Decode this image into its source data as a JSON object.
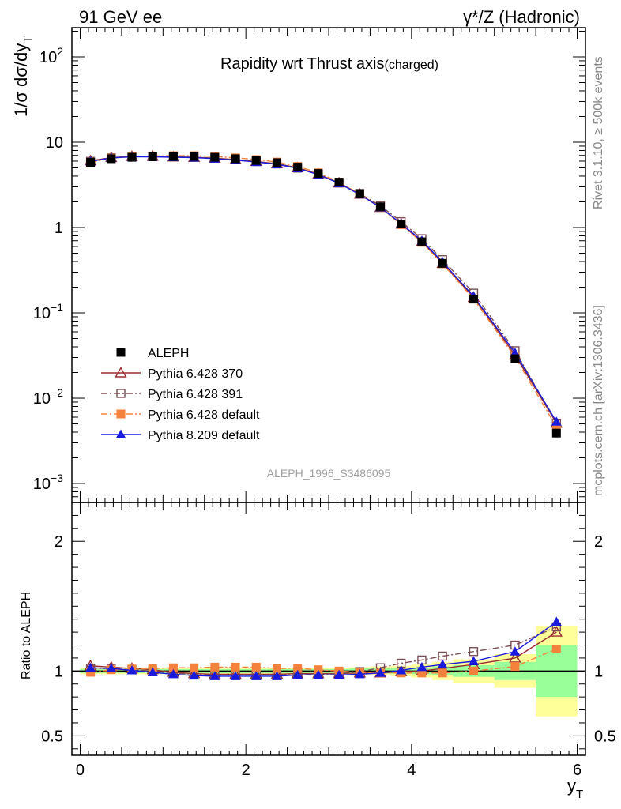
{
  "header": {
    "left_label": "91 GeV ee",
    "right_label": "γ*/Z (Hadronic)"
  },
  "side_labels": {
    "rivet": "Rivet 3.1.10, ≥ 500k events",
    "mcplots": "mcplots.cern.ch [arXiv:1306.3436]"
  },
  "chart_data": {
    "type": "line",
    "title": "Rapidity wrt Thrust axis",
    "title_suffix": "(charged)",
    "watermark": "ALEPH_1996_S3486095",
    "ylabel": "1/σ dσ/dy_T",
    "ylabel_main": "1/σ dσ/dy",
    "ylabel_sub": "T",
    "xlabel_main": "y",
    "xlabel_sub": "T",
    "ratio_ylabel": "Ratio to ALEPH",
    "xlim": [
      -0.1,
      6.1
    ],
    "ylim": [
      0.0006,
      220
    ],
    "yscale": "log",
    "ratio_ylim": [
      0.35,
      2.3
    ],
    "x_ticks": [
      "0",
      "2",
      "4",
      "6"
    ],
    "y_ticks": [
      "10^-3",
      "10^-2",
      "10^-1",
      "1",
      "10",
      "10^2"
    ],
    "ratio_ticks": [
      "0.5",
      "1",
      "2"
    ],
    "legend_position": "lower-left",
    "x": [
      0.125,
      0.375,
      0.625,
      0.875,
      1.125,
      1.375,
      1.625,
      1.875,
      2.125,
      2.375,
      2.625,
      2.875,
      3.125,
      3.375,
      3.625,
      3.875,
      4.125,
      4.375,
      4.75,
      5.25,
      5.75
    ],
    "bin_edges": [
      0.0,
      0.25,
      0.5,
      0.75,
      1.0,
      1.25,
      1.5,
      1.75,
      2.0,
      2.25,
      2.5,
      2.75,
      3.0,
      3.25,
      3.5,
      3.75,
      4.0,
      4.25,
      4.5,
      5.0,
      5.5,
      6.0
    ],
    "band_inner": [
      0.015,
      0.015,
      0.015,
      0.015,
      0.015,
      0.015,
      0.015,
      0.015,
      0.015,
      0.015,
      0.015,
      0.015,
      0.015,
      0.02,
      0.02,
      0.02,
      0.025,
      0.035,
      0.045,
      0.07,
      0.2
    ],
    "band_outer": [
      0.025,
      0.025,
      0.025,
      0.025,
      0.025,
      0.025,
      0.025,
      0.025,
      0.025,
      0.025,
      0.025,
      0.025,
      0.025,
      0.03,
      0.035,
      0.04,
      0.05,
      0.07,
      0.09,
      0.13,
      0.35
    ],
    "series": [
      {
        "name": "ALEPH",
        "color": "#000000",
        "marker": "square-filled",
        "values": [
          5.8,
          6.4,
          6.65,
          6.75,
          6.8,
          6.8,
          6.65,
          6.4,
          6.1,
          5.75,
          5.1,
          4.3,
          3.4,
          2.5,
          1.75,
          1.1,
          0.68,
          0.38,
          0.145,
          0.029,
          0.0039
        ],
        "ratio": [
          1,
          1,
          1,
          1,
          1,
          1,
          1,
          1,
          1,
          1,
          1,
          1,
          1,
          1,
          1,
          1,
          1,
          1,
          1,
          1,
          1
        ]
      },
      {
        "name": "Pythia 6.428 370",
        "color": "#9b2d30",
        "marker": "triangle-open",
        "dash": "solid",
        "values": [
          6.05,
          6.6,
          6.8,
          6.85,
          6.72,
          6.65,
          6.5,
          6.25,
          5.95,
          5.6,
          5.02,
          4.22,
          3.33,
          2.46,
          1.72,
          1.1,
          0.68,
          0.38,
          0.152,
          0.032,
          0.0051
        ],
        "ratio": [
          1.04,
          1.03,
          1.02,
          1.01,
          0.99,
          0.98,
          0.975,
          0.975,
          0.975,
          0.975,
          0.98,
          0.98,
          0.98,
          0.985,
          0.985,
          0.995,
          1.0,
          1.02,
          1.05,
          1.1,
          1.3
        ]
      },
      {
        "name": "Pythia 6.428 391",
        "color": "#7b4f55",
        "marker": "square-open",
        "dash": "dashdot",
        "values": [
          5.95,
          6.55,
          6.75,
          6.8,
          6.72,
          6.65,
          6.5,
          6.22,
          5.92,
          5.56,
          4.97,
          4.2,
          3.33,
          2.5,
          1.8,
          1.17,
          0.74,
          0.42,
          0.17,
          0.036,
          0.0051
        ],
        "ratio": [
          1.02,
          1.02,
          1.01,
          1.0,
          0.985,
          0.975,
          0.97,
          0.97,
          0.97,
          0.97,
          0.975,
          0.975,
          0.98,
          0.995,
          1.025,
          1.06,
          1.085,
          1.115,
          1.15,
          1.2,
          1.34
        ]
      },
      {
        "name": "Pythia 6.428 default",
        "color": "#f5823c",
        "marker": "square-filled",
        "dash": "dashdot",
        "values": [
          5.75,
          6.5,
          6.75,
          6.9,
          6.95,
          6.95,
          6.8,
          6.55,
          6.25,
          5.85,
          5.2,
          4.38,
          3.4,
          2.48,
          1.72,
          1.08,
          0.67,
          0.375,
          0.145,
          0.0303,
          0.0046
        ],
        "ratio": [
          0.99,
          1.01,
          1.015,
          1.02,
          1.025,
          1.025,
          1.03,
          1.03,
          1.03,
          1.02,
          1.02,
          1.01,
          1.0,
          0.99,
          0.985,
          0.985,
          0.985,
          0.985,
          1.0,
          1.035,
          1.17
        ]
      },
      {
        "name": "Pythia 8.209 default",
        "color": "#1a1adf",
        "marker": "triangle-filled",
        "dash": "solid",
        "values": [
          5.95,
          6.55,
          6.72,
          6.72,
          6.67,
          6.6,
          6.4,
          6.15,
          5.85,
          5.5,
          4.95,
          4.16,
          3.3,
          2.44,
          1.72,
          1.11,
          0.7,
          0.395,
          0.156,
          0.034,
          0.0053
        ],
        "ratio": [
          1.025,
          1.02,
          1.005,
          0.99,
          0.975,
          0.965,
          0.96,
          0.96,
          0.96,
          0.96,
          0.97,
          0.97,
          0.97,
          0.975,
          0.985,
          1.005,
          1.03,
          1.05,
          1.075,
          1.15,
          1.38
        ]
      }
    ]
  }
}
